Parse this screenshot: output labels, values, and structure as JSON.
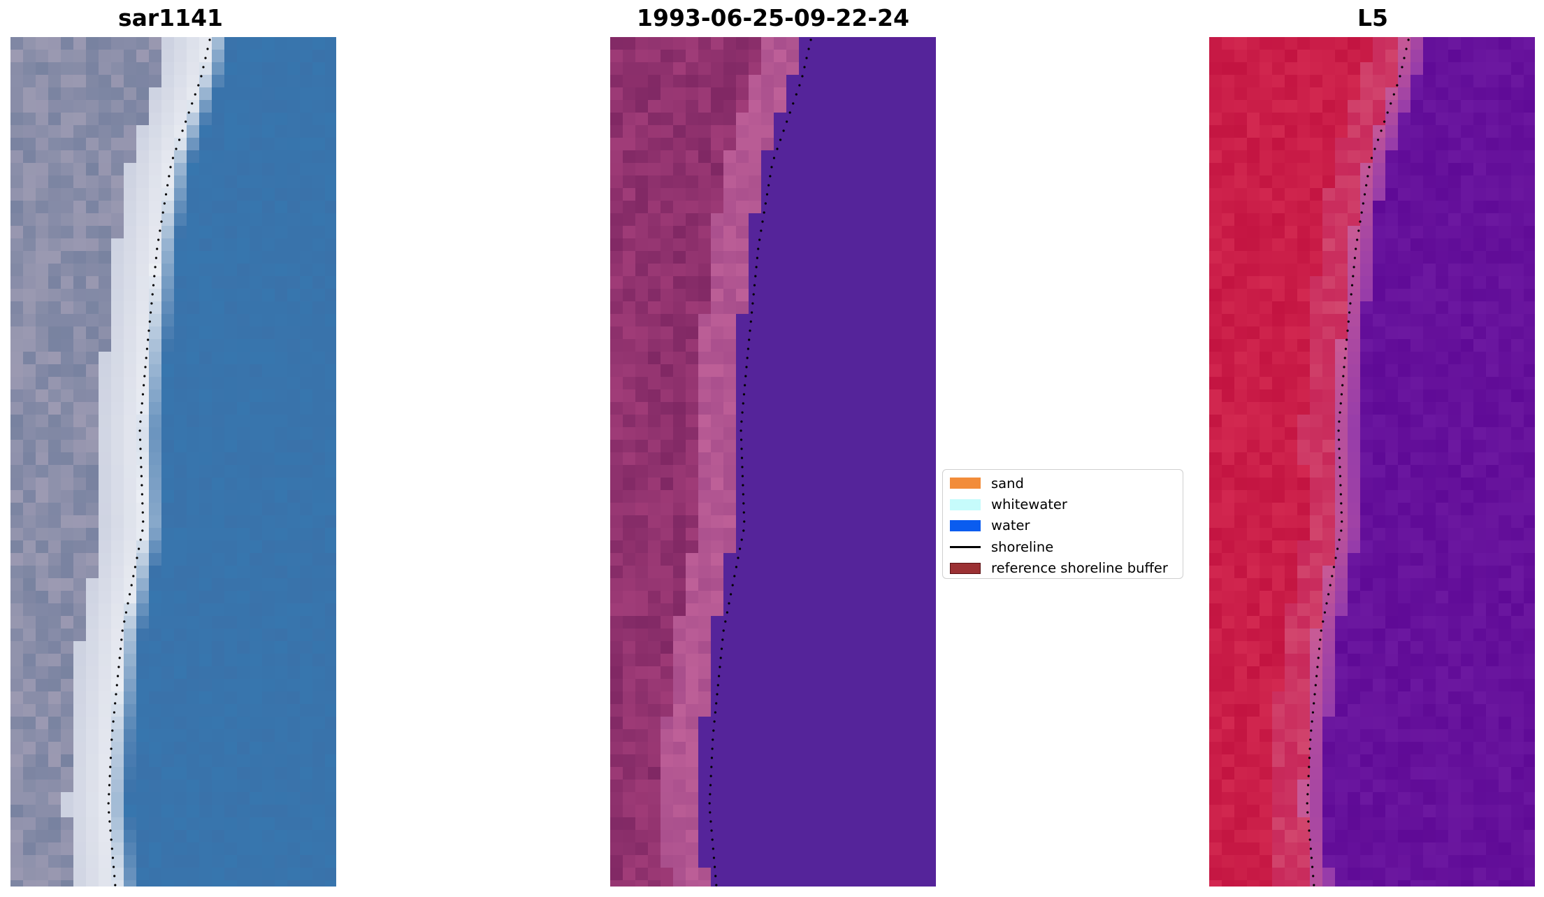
{
  "panels": [
    {
      "title": "sar1141",
      "palette": "rgb-composite"
    },
    {
      "title": "1993-06-25-09-22-24",
      "palette": "classification"
    },
    {
      "title": "L5",
      "palette": "index"
    }
  ],
  "legend": {
    "items": [
      {
        "label": "sand",
        "color": "#f28c3a",
        "kind": "patch"
      },
      {
        "label": "whitewater",
        "color": "#c6fbfb",
        "kind": "patch"
      },
      {
        "label": "water",
        "color": "#0a5cef",
        "kind": "patch"
      },
      {
        "label": "shoreline",
        "color": "#000000",
        "kind": "line"
      },
      {
        "label": "reference shoreline buffer",
        "color": "#9b3033",
        "kind": "edged"
      }
    ]
  },
  "colors": {
    "water_class": "#55249a",
    "land_class": "#8a2f6a",
    "sea_rgb": "#3a72aa",
    "land_index": "#c2163f",
    "sea_index": "#6b18a0"
  }
}
